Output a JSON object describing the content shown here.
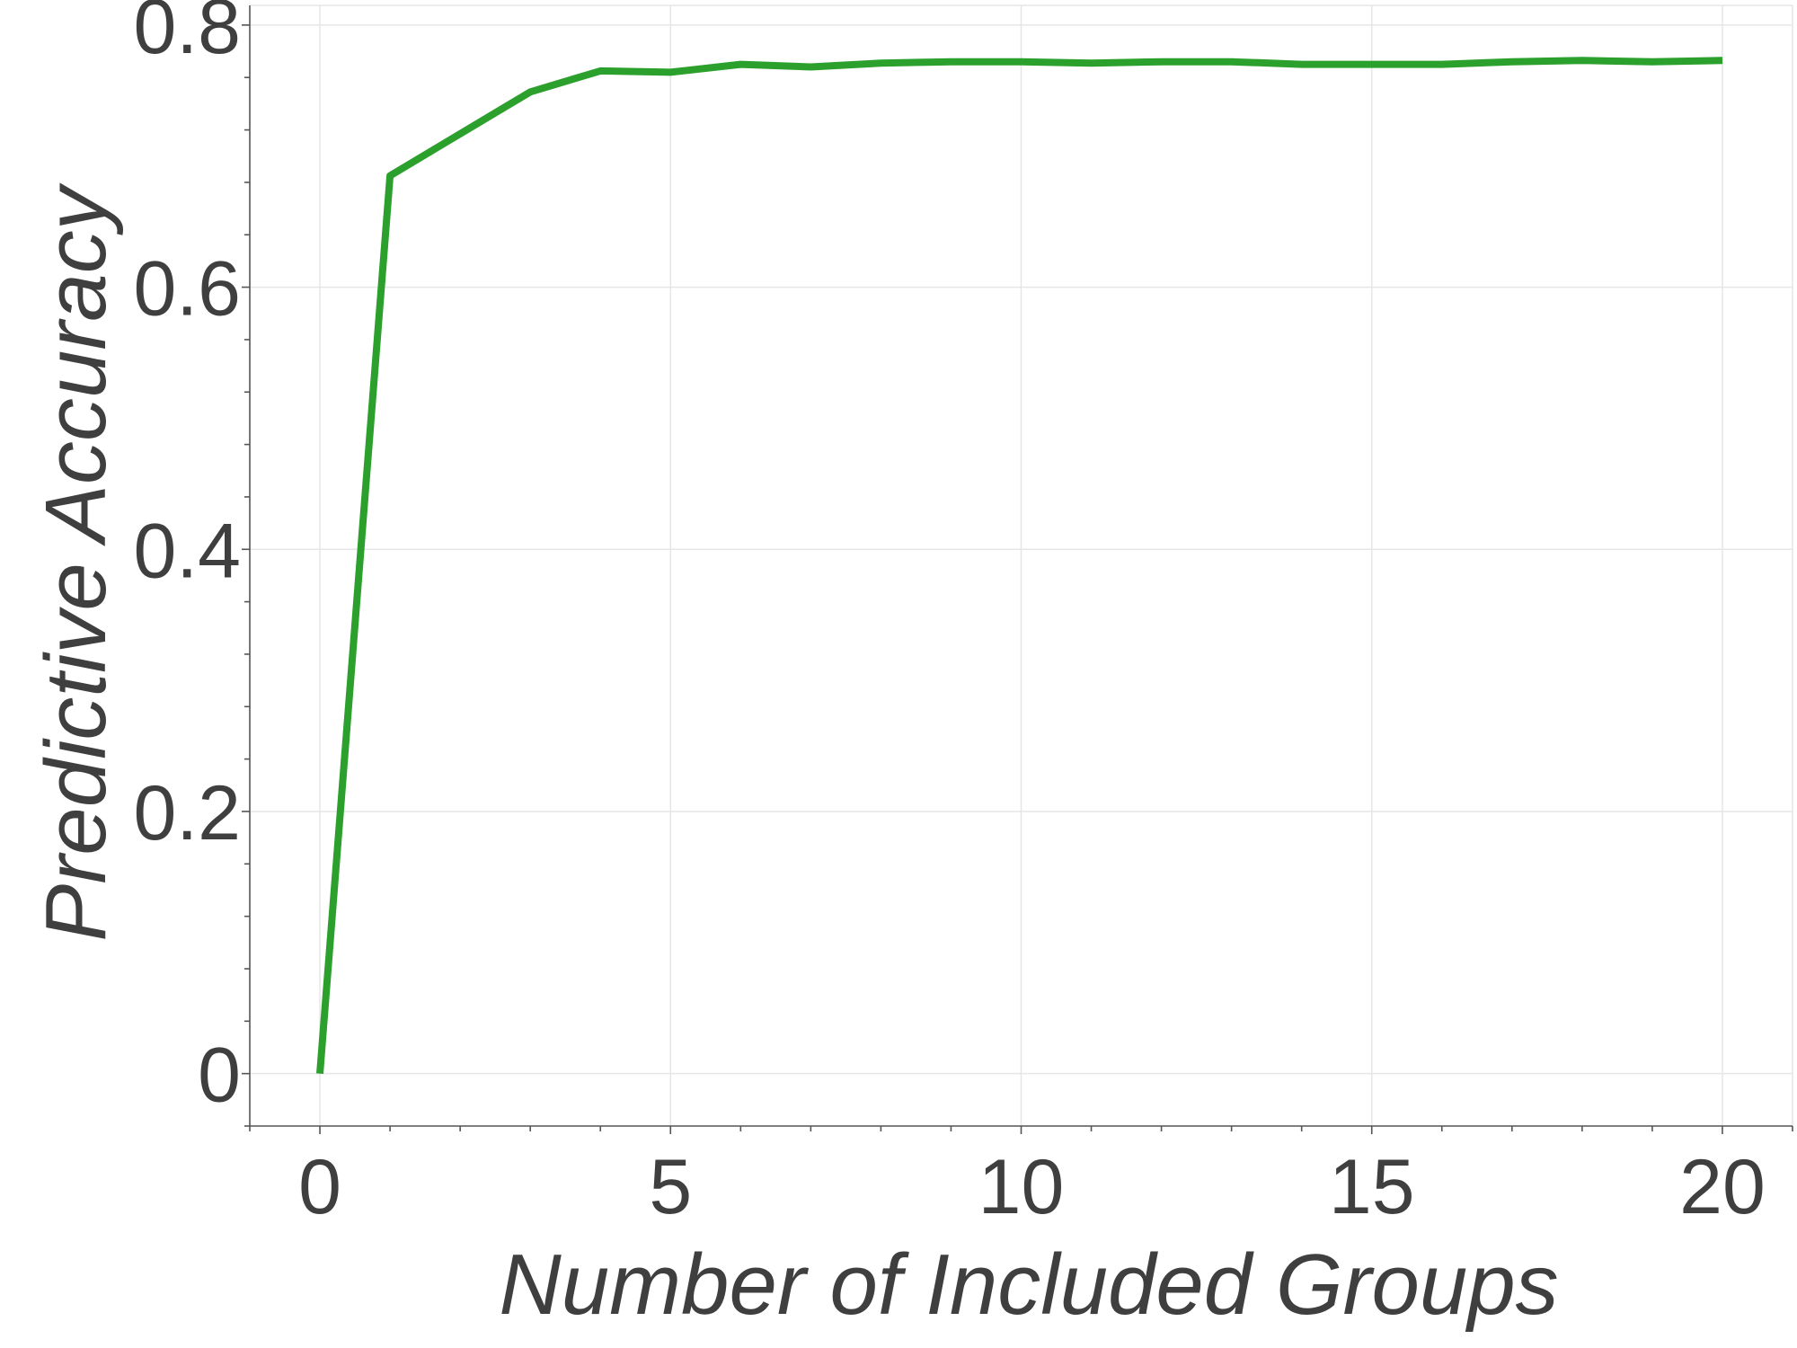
{
  "chart_data": {
    "type": "line",
    "title": "",
    "xlabel": "Number of Included Groups",
    "ylabel": "Predictive Accuracy",
    "xlim": [
      -1,
      21
    ],
    "ylim": [
      -0.04,
      0.815
    ],
    "x_ticks": [
      0,
      5,
      10,
      15,
      20
    ],
    "x_tick_labels": [
      "0",
      "5",
      "10",
      "15",
      "20"
    ],
    "y_ticks": [
      0,
      0.2,
      0.4,
      0.6,
      0.8
    ],
    "y_tick_labels": [
      "0",
      "0.2",
      "0.4",
      "0.6",
      "0.8"
    ],
    "x_minor_step": 1,
    "y_minor_step": 0.04,
    "grid": true,
    "series": [
      {
        "color": "#2ca02c",
        "x": [
          0,
          1,
          2,
          3,
          4,
          5,
          6,
          7,
          8,
          9,
          10,
          11,
          12,
          13,
          14,
          15,
          16,
          17,
          18,
          19,
          20
        ],
        "y": [
          0.0,
          0.685,
          0.717,
          0.749,
          0.765,
          0.764,
          0.77,
          0.768,
          0.771,
          0.772,
          0.772,
          0.771,
          0.772,
          0.772,
          0.77,
          0.77,
          0.77,
          0.772,
          0.773,
          0.772,
          0.773
        ]
      }
    ]
  }
}
